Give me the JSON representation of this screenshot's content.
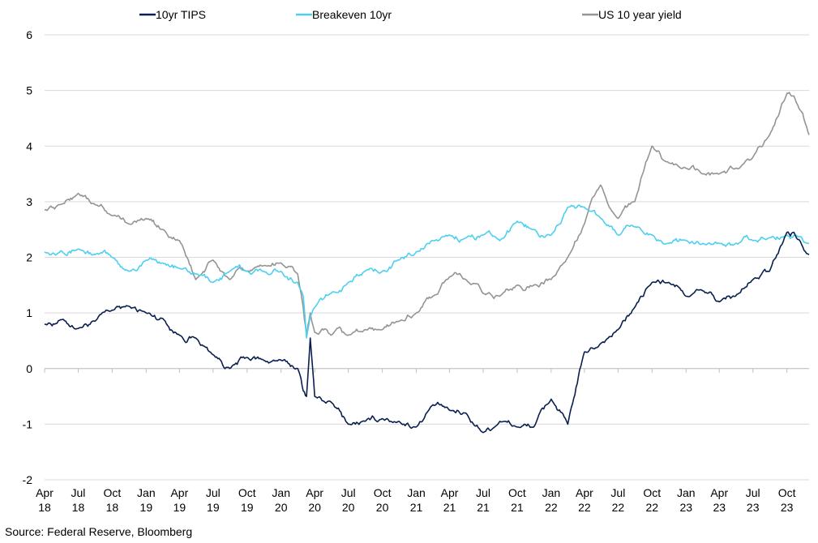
{
  "chart_data": {
    "type": "line",
    "title": "",
    "xlabel": "",
    "ylabel": "",
    "ylim": [
      -2,
      6
    ],
    "yticks": [
      -2,
      -1,
      0,
      1,
      2,
      3,
      4,
      5,
      6
    ],
    "xlim": [
      "2018-04-01",
      "2023-11-30"
    ],
    "xticks": [
      {
        "date": "2018-04-01",
        "month": "Apr",
        "year": "18"
      },
      {
        "date": "2018-07-01",
        "month": "Jul",
        "year": "18"
      },
      {
        "date": "2018-10-01",
        "month": "Oct",
        "year": "18"
      },
      {
        "date": "2019-01-01",
        "month": "Jan",
        "year": "19"
      },
      {
        "date": "2019-04-01",
        "month": "Apr",
        "year": "19"
      },
      {
        "date": "2019-07-01",
        "month": "Jul",
        "year": "19"
      },
      {
        "date": "2019-10-01",
        "month": "Oct",
        "year": "19"
      },
      {
        "date": "2020-01-01",
        "month": "Jan",
        "year": "20"
      },
      {
        "date": "2020-04-01",
        "month": "Apr",
        "year": "20"
      },
      {
        "date": "2020-07-01",
        "month": "Jul",
        "year": "20"
      },
      {
        "date": "2020-10-01",
        "month": "Oct",
        "year": "20"
      },
      {
        "date": "2021-01-01",
        "month": "Jan",
        "year": "21"
      },
      {
        "date": "2021-04-01",
        "month": "Apr",
        "year": "21"
      },
      {
        "date": "2021-07-01",
        "month": "Jul",
        "year": "21"
      },
      {
        "date": "2021-10-01",
        "month": "Oct",
        "year": "21"
      },
      {
        "date": "2022-01-01",
        "month": "Jan",
        "year": "22"
      },
      {
        "date": "2022-04-01",
        "month": "Apr",
        "year": "22"
      },
      {
        "date": "2022-07-01",
        "month": "Jul",
        "year": "22"
      },
      {
        "date": "2022-10-01",
        "month": "Oct",
        "year": "22"
      },
      {
        "date": "2023-01-01",
        "month": "Jan",
        "year": "23"
      },
      {
        "date": "2023-04-01",
        "month": "Apr",
        "year": "23"
      },
      {
        "date": "2023-07-01",
        "month": "Jul",
        "year": "23"
      },
      {
        "date": "2023-10-01",
        "month": "Oct",
        "year": "23"
      }
    ],
    "grid": "horizontal",
    "legend_position": "top",
    "x": [
      "2018-04-01",
      "2018-05-15",
      "2018-07-01",
      "2018-08-15",
      "2018-10-01",
      "2018-11-15",
      "2019-01-01",
      "2019-02-15",
      "2019-04-01",
      "2019-05-15",
      "2019-07-01",
      "2019-08-15",
      "2019-10-01",
      "2019-11-15",
      "2020-01-01",
      "2020-02-15",
      "2020-03-01",
      "2020-03-10",
      "2020-03-20",
      "2020-04-01",
      "2020-05-15",
      "2020-07-01",
      "2020-08-15",
      "2020-10-01",
      "2020-11-15",
      "2021-01-01",
      "2021-02-15",
      "2021-04-01",
      "2021-05-15",
      "2021-07-01",
      "2021-08-15",
      "2021-10-01",
      "2021-11-15",
      "2022-01-01",
      "2022-02-15",
      "2022-04-01",
      "2022-05-15",
      "2022-07-01",
      "2022-08-15",
      "2022-10-01",
      "2022-11-15",
      "2023-01-01",
      "2023-02-15",
      "2023-04-01",
      "2023-05-15",
      "2023-07-01",
      "2023-08-15",
      "2023-10-01",
      "2023-10-20",
      "2023-11-30"
    ],
    "series": [
      {
        "name": "10yr TIPS",
        "color": "#0a1f4e",
        "values": [
          0.8,
          0.88,
          0.72,
          0.85,
          1.05,
          1.12,
          1.0,
          0.9,
          0.6,
          0.55,
          0.25,
          0.0,
          0.2,
          0.15,
          0.15,
          0.0,
          -0.4,
          -0.5,
          0.55,
          -0.5,
          -0.6,
          -1.0,
          -0.95,
          -0.9,
          -0.95,
          -1.05,
          -0.65,
          -0.75,
          -0.8,
          -1.15,
          -0.95,
          -1.05,
          -1.05,
          -0.55,
          -1.0,
          0.3,
          0.45,
          0.7,
          1.1,
          1.55,
          1.55,
          1.3,
          1.4,
          1.2,
          1.3,
          1.6,
          1.75,
          2.45,
          2.45,
          2.05
        ]
      },
      {
        "name": "Breakeven 10yr",
        "color": "#4dd0f0",
        "values": [
          2.1,
          2.12,
          2.15,
          2.05,
          2.0,
          1.75,
          1.95,
          1.9,
          1.8,
          1.7,
          1.55,
          1.75,
          1.75,
          1.75,
          1.75,
          1.55,
          1.3,
          0.55,
          0.95,
          1.1,
          1.35,
          1.55,
          1.75,
          1.75,
          1.95,
          2.1,
          2.3,
          2.4,
          2.35,
          2.4,
          2.3,
          2.65,
          2.5,
          2.4,
          2.9,
          2.9,
          2.7,
          2.4,
          2.55,
          2.4,
          2.25,
          2.3,
          2.25,
          2.25,
          2.25,
          2.3,
          2.35,
          2.4,
          2.4,
          2.25
        ]
      },
      {
        "name": "US 10 year yield",
        "color": "#949494",
        "values": [
          2.85,
          2.95,
          3.15,
          2.95,
          2.75,
          2.6,
          2.7,
          2.5,
          2.3,
          1.6,
          1.95,
          1.6,
          1.75,
          1.85,
          1.9,
          1.7,
          1.1,
          0.6,
          1.0,
          0.65,
          0.6,
          0.6,
          0.7,
          0.7,
          0.85,
          1.0,
          1.3,
          1.65,
          1.6,
          1.35,
          1.3,
          1.5,
          1.5,
          1.6,
          2.0,
          2.6,
          3.3,
          2.7,
          3.0,
          4.0,
          3.7,
          3.6,
          3.5,
          3.5,
          3.6,
          3.8,
          4.2,
          4.95,
          4.9,
          4.2
        ]
      }
    ],
    "source": "Source: Federal Reserve, Bloomberg"
  }
}
